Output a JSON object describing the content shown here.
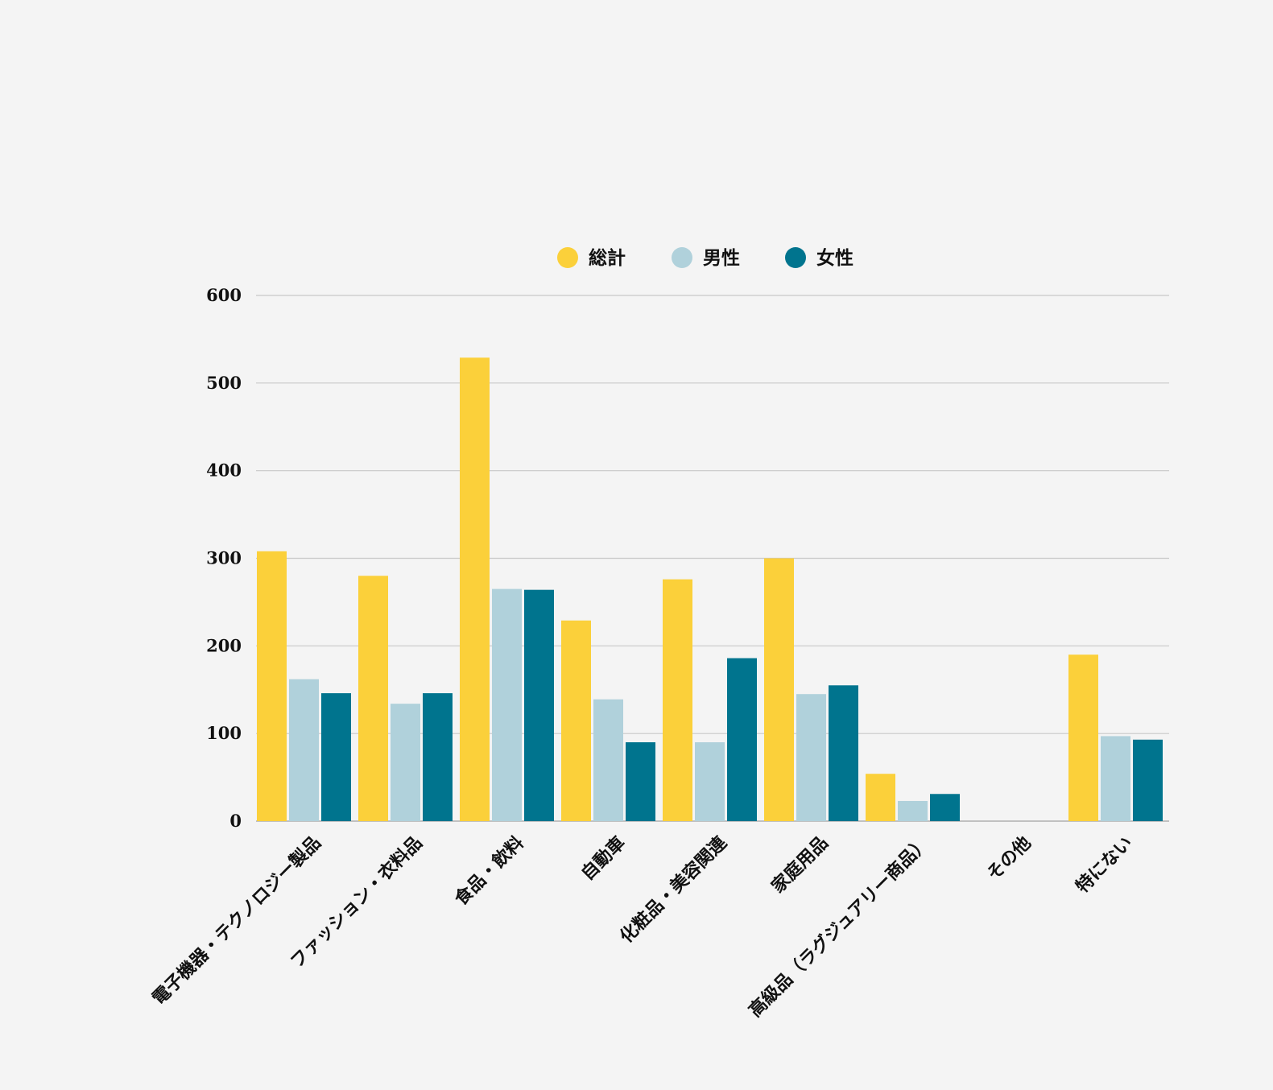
{
  "chart_data": {
    "type": "bar",
    "categories": [
      "電子機器・テクノロジー製品",
      "ファッション・衣料品",
      "食品・飲料",
      "自動車",
      "化粧品・美容関連",
      "家庭用品",
      "高級品（ラグジュアリー商品）",
      "その他",
      "特にない"
    ],
    "series": [
      {
        "name": "総計",
        "color": "#fbd03a",
        "values": [
          308,
          280,
          529,
          229,
          276,
          300,
          54,
          0,
          190
        ]
      },
      {
        "name": "男性",
        "color": "#b0d1db",
        "values": [
          162,
          134,
          265,
          139,
          90,
          145,
          23,
          0,
          97
        ]
      },
      {
        "name": "女性",
        "color": "#00748e",
        "values": [
          146,
          146,
          264,
          90,
          186,
          155,
          31,
          0,
          93
        ]
      }
    ],
    "title": "",
    "xlabel": "",
    "ylabel": "",
    "ylim": [
      0,
      600
    ],
    "yticks": [
      "0",
      "100",
      "200",
      "300",
      "400",
      "500",
      "600"
    ],
    "grid": true,
    "legend": "top-center"
  }
}
